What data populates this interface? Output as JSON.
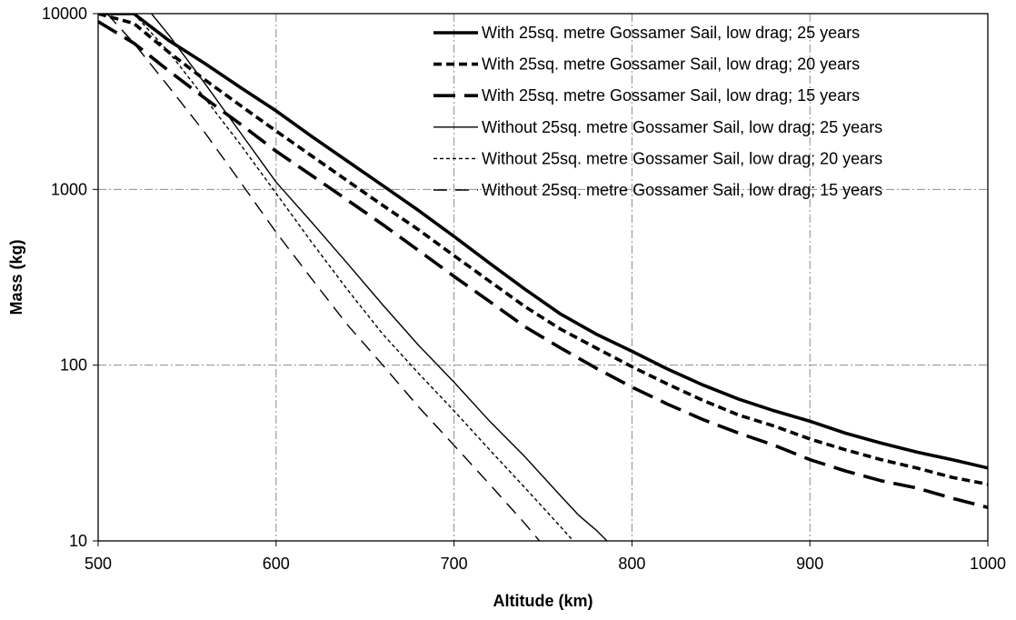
{
  "chart_data": {
    "type": "line",
    "title": "",
    "xlabel": "Altitude (km)",
    "ylabel": "Mass (kg)",
    "xlim": [
      500,
      1000
    ],
    "ylim": [
      10,
      10000
    ],
    "yscale": "log",
    "xticks": [
      "500",
      "600",
      "700",
      "800",
      "900",
      "1000"
    ],
    "yticks": [
      "10",
      "100",
      "1000",
      "10000"
    ],
    "grid": "dash-dot, major ticks",
    "legend_position": "top-right",
    "series": [
      {
        "name": "With 25sq. metre Gossamer Sail, low drag; 25 years",
        "style": "thick-solid",
        "x": [
          500,
          520,
          540,
          560,
          580,
          600,
          620,
          640,
          660,
          680,
          700,
          720,
          740,
          760,
          780,
          800,
          820,
          840,
          860,
          880,
          900,
          920,
          940,
          960,
          980,
          1000
        ],
        "y": [
          10000,
          10000,
          7000,
          5200,
          3800,
          2800,
          2000,
          1450,
          1050,
          760,
          540,
          380,
          270,
          195,
          150,
          120,
          95,
          77,
          64,
          55,
          48,
          41,
          36,
          32,
          29,
          26
        ]
      },
      {
        "name": "With 25sq. metre Gossamer Sail, low drag; 20 years",
        "style": "thick-short-dash",
        "x": [
          500,
          520,
          540,
          560,
          580,
          600,
          620,
          640,
          660,
          680,
          700,
          720,
          740,
          760,
          780,
          800,
          820,
          840,
          860,
          880,
          900,
          920,
          940,
          960,
          980,
          1000
        ],
        "y": [
          10000,
          8800,
          6000,
          4200,
          3000,
          2150,
          1550,
          1120,
          810,
          590,
          420,
          300,
          215,
          160,
          125,
          98,
          78,
          63,
          52,
          45,
          38,
          33,
          29,
          26,
          23,
          21
        ]
      },
      {
        "name": "With 25sq. metre Gossamer Sail, low drag; 15 years",
        "style": "thick-long-dash",
        "x": [
          500,
          520,
          540,
          560,
          580,
          600,
          620,
          640,
          660,
          680,
          700,
          720,
          740,
          760,
          780,
          800,
          820,
          840,
          860,
          880,
          900,
          920,
          940,
          960,
          980,
          1000
        ],
        "y": [
          9000,
          6800,
          4700,
          3300,
          2350,
          1650,
          1200,
          870,
          630,
          450,
          320,
          230,
          165,
          125,
          96,
          75,
          60,
          49,
          41,
          35,
          29,
          25,
          22,
          20,
          17.5,
          15.5
        ]
      },
      {
        "name": "Without 25sq. metre Gossamer Sail, low drag; 25 years",
        "style": "thin-solid",
        "x": [
          530,
          540,
          560,
          580,
          600,
          620,
          640,
          660,
          680,
          700,
          720,
          740,
          760,
          770,
          780,
          786
        ],
        "y": [
          10000,
          7500,
          4000,
          2100,
          1100,
          650,
          380,
          220,
          130,
          80,
          48,
          30,
          18,
          14,
          11.5,
          10
        ]
      },
      {
        "name": "Without 25sq. metre Gossamer Sail, low drag; 20 years",
        "style": "thin-short-dash",
        "x": [
          520,
          540,
          560,
          580,
          600,
          620,
          640,
          660,
          680,
          700,
          720,
          740,
          760,
          767
        ],
        "y": [
          10000,
          6000,
          3300,
          1800,
          950,
          500,
          270,
          150,
          90,
          55,
          33,
          20,
          12,
          10
        ]
      },
      {
        "name": "Without 25sq. metre Gossamer Sail, low drag; 15 years",
        "style": "thin-long-dash",
        "x": [
          505,
          520,
          540,
          560,
          580,
          600,
          620,
          640,
          660,
          680,
          700,
          720,
          740,
          748
        ],
        "y": [
          10000,
          6800,
          3800,
          2100,
          1100,
          570,
          310,
          170,
          100,
          58,
          35,
          21,
          12.5,
          10
        ]
      }
    ]
  }
}
